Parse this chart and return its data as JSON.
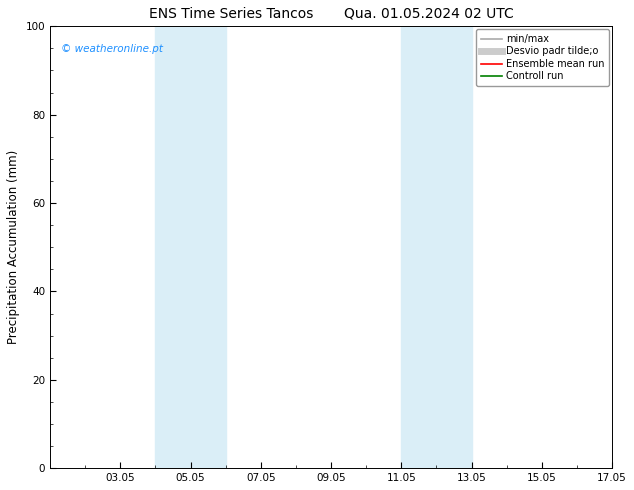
{
  "title": "ENS Time Series Tancos       Qua. 01.05.2024 02 UTC",
  "ylabel": "Precipitation Accumulation (mm)",
  "ylim": [
    0,
    100
  ],
  "yticks": [
    0,
    20,
    40,
    60,
    80,
    100
  ],
  "xlim": [
    1,
    17
  ],
  "xtick_labels": [
    "03.05",
    "05.05",
    "07.05",
    "09.05",
    "11.05",
    "13.05",
    "15.05",
    "17.05"
  ],
  "xtick_positions": [
    3,
    5,
    7,
    9,
    11,
    13,
    15,
    17
  ],
  "shaded_bands": [
    {
      "xmin": 4.0,
      "xmax": 6.0
    },
    {
      "xmin": 11.0,
      "xmax": 13.0
    }
  ],
  "band_color": "#daeef7",
  "background_color": "#ffffff",
  "watermark_text": "© weatheronline.pt",
  "watermark_color": "#1e90ff",
  "legend_entries": [
    {
      "label": "min/max",
      "color": "#aaaaaa",
      "lw": 1.2
    },
    {
      "label": "Desvio padr tilde;o",
      "color": "#cccccc",
      "lw": 5
    },
    {
      "label": "Ensemble mean run",
      "color": "#ff0000",
      "lw": 1.2
    },
    {
      "label": "Controll run",
      "color": "#008000",
      "lw": 1.2
    }
  ],
  "title_fontsize": 10,
  "tick_fontsize": 7.5,
  "ylabel_fontsize": 8.5,
  "watermark_fontsize": 7.5,
  "legend_fontsize": 7
}
